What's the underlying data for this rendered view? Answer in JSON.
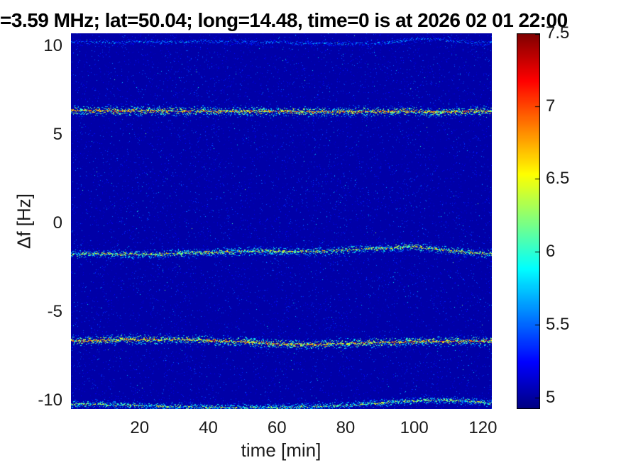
{
  "chart_data": {
    "type": "heatmap",
    "subtype": "spectrogram",
    "title": "=3.59 MHz;  lat=50.04; long=14.48, time=0 is at 2026 02 01 22:00",
    "xlabel": "time [min]",
    "ylabel": "Δf [Hz]",
    "xlim": [
      0,
      122.6
    ],
    "ylim": [
      -10.48,
      10.72
    ],
    "xtick_values": [
      20,
      40,
      60,
      80,
      100,
      120
    ],
    "xtick_labels": [
      "20",
      "40",
      "60",
      "80",
      "100",
      "120"
    ],
    "ytick_values": [
      10,
      5,
      0,
      -5,
      -10
    ],
    "ytick_labels": [
      "10",
      "5",
      "0",
      "-5",
      "-10"
    ],
    "grid": false,
    "background_value": 5.02,
    "colorbar": {
      "position": "right",
      "colormap": "jet",
      "min": 4.92,
      "max": 7.5,
      "tick_values": [
        5,
        5.5,
        6,
        6.5,
        7,
        7.5
      ],
      "tick_labels": [
        "5",
        "5.5",
        "6",
        "6.5",
        "7",
        "7.5"
      ]
    },
    "bands": [
      {
        "name": "top-edge-trace",
        "center_hz": 10.2,
        "halfwidth_hz": 0.1,
        "peak_value": 5.8,
        "density": 0.5,
        "wave_amp_hz": 0.06,
        "bump": {
          "center_min": 103,
          "width_min": 10,
          "amp_hz": 0.22
        }
      },
      {
        "name": "upper-doppler-line",
        "center_hz": 6.3,
        "halfwidth_hz": 0.18,
        "peak_value": 7.2,
        "density": 1.0,
        "wave_amp_hz": 0.05,
        "bump": {
          "center_min": 30,
          "width_min": 30,
          "amp_hz": 0.08
        }
      },
      {
        "name": "mid-doppler-line",
        "center_hz": -1.65,
        "halfwidth_hz": 0.16,
        "peak_value": 6.9,
        "density": 0.9,
        "wave_amp_hz": 0.08,
        "bump": {
          "center_min": 99,
          "width_min": 14,
          "amp_hz": 0.3
        }
      },
      {
        "name": "lower-doppler-line",
        "center_hz": -6.65,
        "halfwidth_hz": 0.18,
        "peak_value": 7.2,
        "density": 1.0,
        "wave_amp_hz": 0.06,
        "bump": {
          "center_min": 65,
          "width_min": 20,
          "amp_hz": -0.15
        }
      },
      {
        "name": "bottom-edge-trace",
        "center_hz": -10.3,
        "halfwidth_hz": 0.14,
        "peak_value": 6.7,
        "density": 0.85,
        "wave_amp_hz": 0.08,
        "bump": {
          "center_min": 108,
          "width_min": 18,
          "amp_hz": 0.25
        }
      }
    ]
  }
}
